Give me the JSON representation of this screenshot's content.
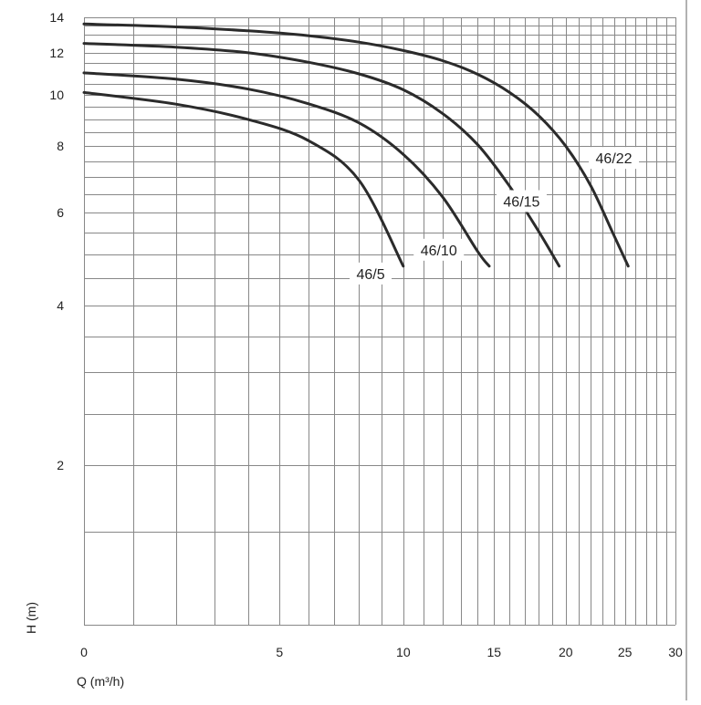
{
  "chart_data": {
    "type": "line",
    "title": "",
    "xlabel": "Q (m³/h)",
    "ylabel": "H (m)",
    "x_scale": "log(Q+6.5)",
    "y_scale": "log",
    "xlim": [
      0,
      30
    ],
    "ylim": [
      1,
      14
    ],
    "x_ticks": [
      0,
      5,
      10,
      15,
      20,
      25,
      30
    ],
    "y_ticks": [
      2,
      4,
      6,
      8,
      10,
      12,
      14
    ],
    "x_gridlines": [
      0,
      1,
      2,
      3,
      4,
      5,
      6,
      7,
      8,
      9,
      10,
      11,
      12,
      13,
      14,
      15,
      16,
      17,
      18,
      19,
      20,
      21,
      22,
      23,
      24,
      25,
      26,
      27,
      28,
      29,
      30
    ],
    "y_gridlines": [
      1,
      1.5,
      2,
      2.5,
      3,
      3.5,
      4,
      4.5,
      5,
      5.5,
      6,
      6.5,
      7,
      7.5,
      8,
      8.5,
      9,
      9.5,
      10,
      10.5,
      11,
      11.5,
      12,
      12.5,
      13,
      13.5,
      14
    ],
    "grid": true,
    "series": [
      {
        "name": "46/22",
        "x": [
          0,
          2,
          4,
          6,
          8,
          10,
          12,
          14,
          16,
          18,
          20,
          22,
          24,
          25.3
        ],
        "y": [
          13.6,
          13.43,
          13.2,
          12.93,
          12.57,
          12.12,
          11.6,
          10.93,
          10.1,
          9.13,
          8.0,
          6.74,
          5.43,
          4.75
        ]
      },
      {
        "name": "46/15",
        "x": [
          0,
          2,
          4,
          6,
          8,
          10,
          12,
          14,
          16,
          18,
          19.5
        ],
        "y": [
          12.5,
          12.3,
          12.0,
          11.52,
          10.95,
          10.22,
          9.22,
          8.05,
          6.72,
          5.52,
          4.75
        ]
      },
      {
        "name": "46/10",
        "x": [
          0,
          2,
          4,
          6,
          8,
          10,
          12,
          14,
          14.7
        ],
        "y": [
          11.0,
          10.7,
          10.25,
          9.62,
          8.85,
          7.72,
          6.42,
          5.06,
          4.75
        ]
      },
      {
        "name": "46/5",
        "x": [
          0,
          2,
          4,
          6,
          8,
          10
        ],
        "y": [
          10.1,
          9.6,
          8.98,
          8.2,
          6.9,
          4.75
        ]
      }
    ]
  }
}
